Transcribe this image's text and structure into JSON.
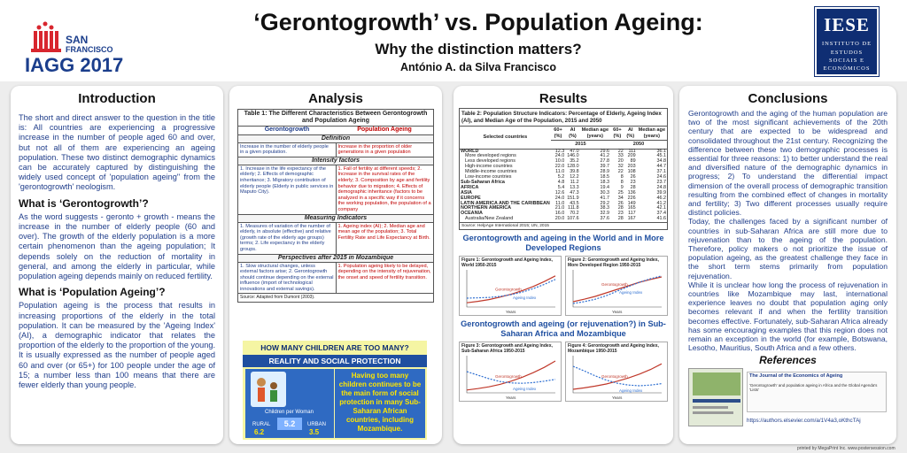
{
  "header": {
    "title": "‘Gerontogrowth’ vs. Population Ageing:",
    "subtitle": "Why the distinction matters?",
    "author": "António A. da Silva Francisco",
    "iagg_logo": {
      "line1": "SAN",
      "line2": "FRANCISCO",
      "text": "IAGG 2017"
    },
    "iese_logo": {
      "big": "IESE",
      "lines": [
        "INSTITUTO DE",
        "ESTUDOS",
        "SOCIAIS E",
        "ECONÓMICOS"
      ]
    }
  },
  "intro": {
    "title": "Introduction",
    "p1": "The short and direct answer to the question in the title is: All countries are experiencing a progressive increase in the number of people aged 60 and over, but not all of them are experiencing an ageing population. These two distinct demographic dynamics can be accurately captured by distinguishing the widely used concept of 'population ageing\" from the 'gerontogrowth' neologism.",
    "h2": "What is ‘Gerontogrowth’?",
    "p2": "As the word suggests - geronto + growth - means the increase in the number of elderly people (60 and over). The growth of the elderly population is a more certain phenomenon than the ageing population; It depends solely on the reduction of mortality in general, and among the elderly in particular, while population ageing depends mainly on reduced fertility.",
    "h3": "What is ‘Population Ageing’?",
    "p3": "Population ageing is the process that results in increasing proportions of the elderly in the total population. It can be measured by the 'Ageing Index' (AI), a demographic indicator that relates the proportion of the elderly to the proportion of the young. It is usually expressed as the number of people aged 60 and over (or 65+) for 100 people under the age of 15; a number less than 100 means that there are fewer elderly than young people."
  },
  "analysis": {
    "title": "Analysis",
    "table_caption": "Table 1: The Different Characteristics Between Gerontogrowth and Population Ageing",
    "col1": "Gerontogrowth",
    "col2": "Population Ageing",
    "sections": [
      {
        "name": "Definition",
        "left": "Increase in the number of elderly people in a given population.",
        "right": "Increase in the proportion of older generations in a given population"
      },
      {
        "name": "Intensity factors",
        "left": "1. Increase in the life expectancy of the elderly; 2. Effects of demographic inheritance; 3. Migratory contribution of elderly people (Elderly in public services in Maputo City).",
        "right": "1. Fall of fertility at different speeds; 2. Increase in the survival rates of the elderly; 3. Composition by age and fertility behavior due to migration; 4. Effects of demographic inheritance (factors to be analyzed in a specific way if it concerns the working population, the population of a company"
      },
      {
        "name": "Measuring Indicators",
        "left": "1. Measures of variation of the number of elderly, in absolute (effective) and relative (growth rate of the elderly age groups) terms; 2. Life expectancy in the elderly groups.",
        "right": "1. Ageing index (AI); 2. Median age and mean age of the population; 3. Total Fertility Rate and Life Expectancy at Birth."
      },
      {
        "name": "Perspectives after 2015 in Mozambique",
        "left": "1. Slow structural changes, unless external factors arise; 2. Gerontogrowth should continue depending on the external influence (import of technological innovations and external savings).",
        "right": "1. Population ageing likely to be delayed, depending on the intensity of rejuvenation, the onset and speed of fertility transition."
      }
    ],
    "table_source": "Source: Adapted from Dumont (2003).",
    "ad": {
      "heading": "HOW MANY CHILDREN ARE TOO MANY?",
      "banner": "REALITY AND SOCIAL PROTECTION",
      "message": "Having too many children continues to be the main form of social protection in many Sub-Saharan African countries, including Mozambique.",
      "children_label": "Children per Woman",
      "total": "5.2",
      "rural_label": "RURAL",
      "urban_label": "URBAN",
      "rural": "6.2",
      "urban": "3.5"
    }
  },
  "results": {
    "title": "Results",
    "table_caption": "Table 2: Population Structure Indicators: Percentage of Elderly, Ageing Index (AI), and Median Age of the Population, 2015 and 2050",
    "headers": [
      "Selected countries",
      "60+ (%)",
      "AI (%)",
      "Median age (years)",
      "60+ (%)",
      "AI (%)",
      "Median age (years)"
    ],
    "years": [
      "2015",
      "2050"
    ],
    "rows": [
      [
        "WORLD",
        "12.3",
        "47.0",
        "29.6",
        "22",
        "111",
        "36.1"
      ],
      [
        "More developed regions",
        "24.0",
        "146.0",
        "41.2",
        "33",
        "209",
        "45.1"
      ],
      [
        "Less developed regions",
        "10.0",
        "35.2",
        "27.8",
        "20",
        "89",
        "34.8"
      ],
      [
        "High-income countries",
        "22.0",
        "128.0",
        "39.7",
        "32",
        "203",
        "44.7"
      ],
      [
        "Middle-income countries",
        "11.0",
        "39.8",
        "28.9",
        "22",
        "108",
        "37.1"
      ],
      [
        "Low-income countries",
        "5.2",
        "12.2",
        "18.5",
        "8",
        "26",
        "24.6"
      ],
      [
        "Sub-Saharan Africa",
        "4.8",
        "11.2",
        "18.3",
        "8",
        "23",
        "23.7"
      ],
      [
        "AFRICA",
        "5.4",
        "13.3",
        "19.4",
        "9",
        "28",
        "24.8"
      ],
      [
        "ASIA",
        "12.6",
        "47.3",
        "30.3",
        "25",
        "136",
        "39.9"
      ],
      [
        "EUROPE",
        "24.0",
        "151.9",
        "41.7",
        "34",
        "226",
        "46.2"
      ],
      [
        "LATIN AMERICA AND THE CARIBBEAN",
        "11.0",
        "43.5",
        "29.2",
        "26",
        "149",
        "41.2"
      ],
      [
        "NORTHERN AMERICA",
        "21.0",
        "111.8",
        "38.3",
        "28",
        "165",
        "42.1"
      ],
      [
        "OCEANIA",
        "16.0",
        "70.2",
        "32.9",
        "23",
        "117",
        "37.4"
      ],
      [
        "Australia/New Zealand",
        "20.0",
        "107.6",
        "37.6",
        "28",
        "167",
        "41.6"
      ]
    ],
    "bold_rows": [
      0,
      6,
      7,
      8,
      9,
      10,
      11,
      12
    ],
    "table_source": "Source: HelpAge International 2015; UN, 2015",
    "head1": "Gerontogrowth and ageing in the World and in More Developed Regions",
    "head2": "Gerontogrowth and ageing (or rejuvenation?) in Sub-Saharan Africa and Mozambique",
    "figures": [
      {
        "title": "Figure 1: Gerontogrowth and Ageing Index, World 1950-2015",
        "growth": [
          0.12,
          0.16,
          0.21,
          0.28,
          0.36,
          0.46,
          0.58,
          0.72,
          0.88
        ],
        "index": [
          0.25,
          0.26,
          0.27,
          0.3,
          0.35,
          0.42,
          0.52,
          0.64,
          0.78
        ],
        "growth_label": "Gerontogrowth",
        "index_label": "Ageing Index",
        "xlabel": "Years"
      },
      {
        "title": "Figure 2: Gerontogrowth and Ageing Index, More Developed Region 1950-2015",
        "growth": [
          0.15,
          0.22,
          0.3,
          0.4,
          0.5,
          0.6,
          0.7,
          0.78,
          0.85
        ],
        "index": [
          0.1,
          0.15,
          0.22,
          0.32,
          0.45,
          0.58,
          0.7,
          0.8,
          0.88
        ],
        "growth_label": "Gerontogrowth",
        "index_label": "Ageing Index",
        "xlabel": "Years"
      },
      {
        "title": "Figure 3: Gerontogrowth and Ageing Index, Sub-Saharan Africa 1950-2015",
        "growth": [
          0.08,
          0.12,
          0.17,
          0.24,
          0.33,
          0.44,
          0.57,
          0.72,
          0.9
        ],
        "index": [
          0.6,
          0.5,
          0.4,
          0.32,
          0.28,
          0.27,
          0.29,
          0.33,
          0.38
        ],
        "growth_label": "Gerontogrowth",
        "index_label": "Ageing Index",
        "xlabel": "Years"
      },
      {
        "title": "Figure 4: Gerontogrowth and Ageing Index, Mozambique 1950-2015",
        "growth": [
          0.1,
          0.14,
          0.19,
          0.25,
          0.33,
          0.42,
          0.53,
          0.66,
          0.82
        ],
        "index": [
          0.75,
          0.62,
          0.48,
          0.36,
          0.27,
          0.22,
          0.2,
          0.22,
          0.26
        ],
        "growth_label": "Gerontogrowth",
        "index_label": "Ageing Index",
        "xlabel": "Years"
      }
    ]
  },
  "conclusions": {
    "title": "Conclusions",
    "p1": "Gerontogrowth and the aging of the human population are two of the most significant achievements of the 20th century that are expected to be widespread and consolidated throughout the 21st century. Recognizing the difference between these two demographic processes is essential for three reasons: 1) to better understand the real and diversified nature of the demographic dynamics in progress; 2) To understand the differential impact dimension of the overall process of demographic transition resulting from the combined effect of changes in mortality and fertility; 3) Two different processes usually require distinct policies.",
    "p2": "Today, the challenges faced by a significant number of countries in sub-Saharan Africa are still more due to rejuvenation than to the ageing of the population. Therefore, policy makers o not prioritize the issue of population ageing, as the greatest challenge they face in the short term stems primarily from population rejuvenation.",
    "p3": "While it is unclear how long the process of rejuvenation in countries like Mozambique may last, international experience leaves no doubt that population aging only becomes relevant if and when the fertility transition becomes effective. Fortunately, sub-Saharan Africa already has some encouraging examples that this region does not remain an exception in the world (for example, Botswana, Lesotho, Mauritius, South Africa and a few others.",
    "refs_title": "References",
    "journal_name": "The Journal of the Economics of Ageing",
    "article_title": "'Gerontogrowth' and population ageing in Africa and the Global Agenda's 'Lists'",
    "ref_url": "https://authors.elsevier.com/a/1V4a3,oKthcTAj"
  },
  "footer": "printed by MegaPrint Inc. www.postersession.com"
}
